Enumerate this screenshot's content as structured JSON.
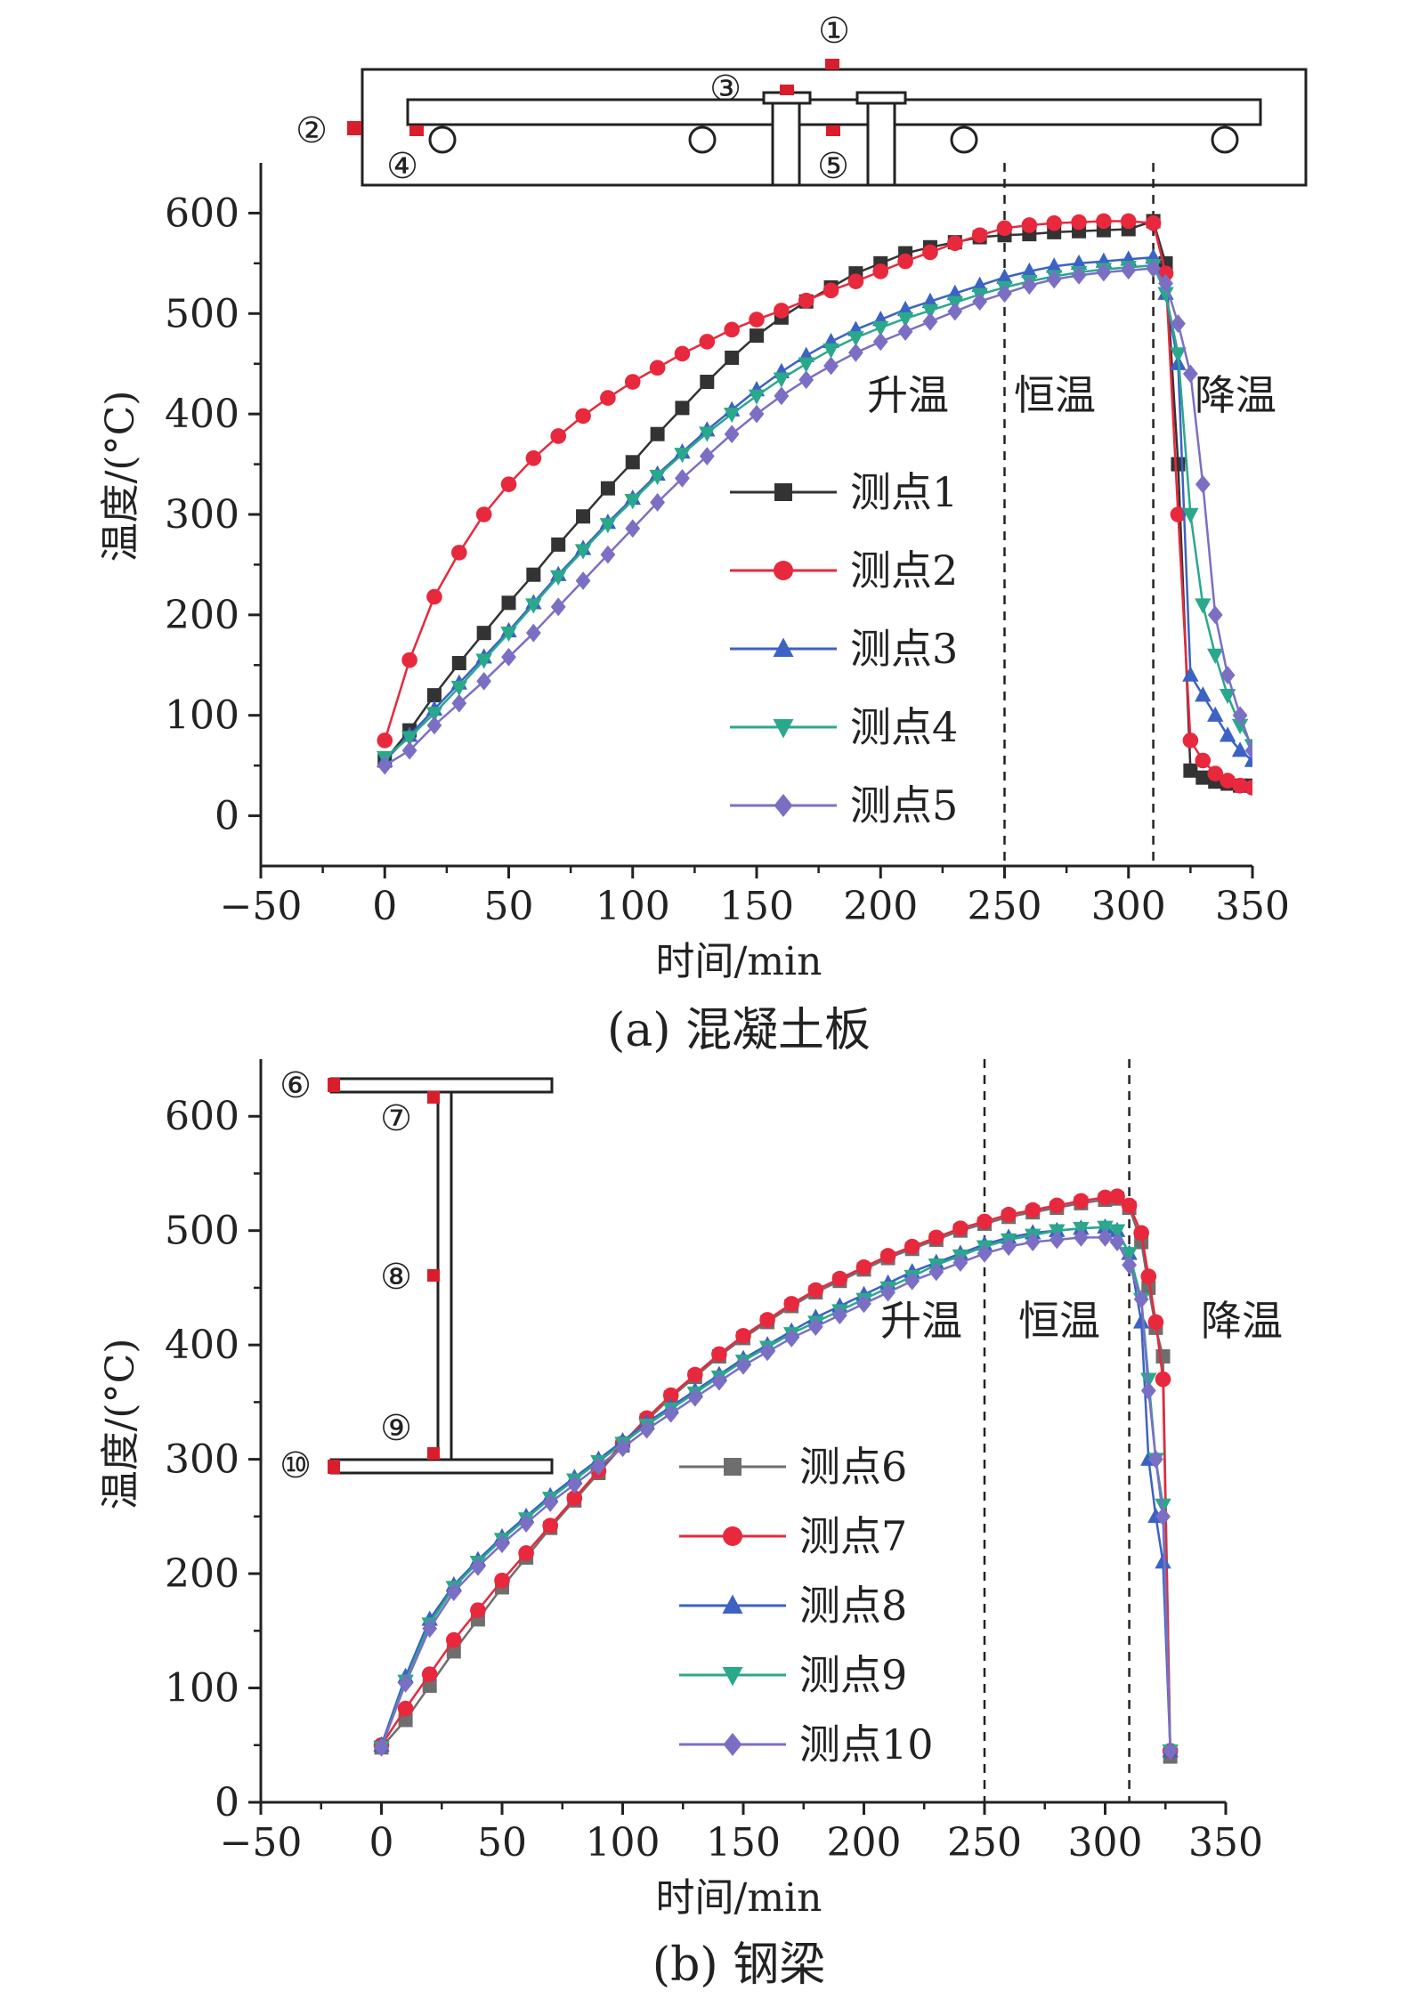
{
  "chart_data": [
    {
      "type": "line",
      "caption": "(a) 混凝土板",
      "xlabel": "时间/min",
      "ylabel": "温度/(°C)",
      "xlim": [
        -50,
        350
      ],
      "ylim": [
        -50,
        650
      ],
      "xticks": [
        -50,
        0,
        50,
        100,
        150,
        200,
        250,
        300,
        350
      ],
      "yticks": [
        0,
        100,
        200,
        300,
        400,
        500,
        600
      ],
      "phase_lines": [
        250,
        310
      ],
      "phases": [
        "升温",
        "恒温",
        "降温"
      ],
      "diagram_labels": [
        "①",
        "②",
        "③",
        "④",
        "⑤"
      ],
      "series": [
        {
          "name": "测点1",
          "color": "#333333",
          "marker": "square",
          "x": [
            0,
            10,
            20,
            30,
            40,
            50,
            60,
            70,
            80,
            90,
            100,
            110,
            120,
            130,
            140,
            150,
            160,
            170,
            180,
            190,
            200,
            210,
            220,
            230,
            240,
            250,
            260,
            270,
            280,
            290,
            300,
            310,
            315,
            320,
            325,
            330,
            335,
            340,
            345,
            350
          ],
          "y": [
            55,
            85,
            120,
            152,
            182,
            212,
            240,
            270,
            298,
            326,
            352,
            380,
            406,
            432,
            456,
            478,
            496,
            512,
            526,
            540,
            550,
            560,
            566,
            571,
            576,
            578,
            579,
            581,
            582,
            583,
            584,
            592,
            550,
            350,
            45,
            38,
            34,
            32,
            30,
            30
          ]
        },
        {
          "name": "测点2",
          "color": "#e8283c",
          "marker": "circle",
          "x": [
            0,
            10,
            20,
            30,
            40,
            50,
            60,
            70,
            80,
            90,
            100,
            110,
            120,
            130,
            140,
            150,
            160,
            170,
            180,
            190,
            200,
            210,
            220,
            230,
            240,
            250,
            260,
            270,
            280,
            290,
            300,
            310,
            315,
            320,
            325,
            330,
            335,
            340,
            345,
            350
          ],
          "y": [
            75,
            155,
            218,
            262,
            300,
            330,
            356,
            378,
            398,
            416,
            432,
            446,
            460,
            472,
            484,
            494,
            503,
            513,
            523,
            532,
            542,
            552,
            561,
            570,
            578,
            585,
            588,
            590,
            591,
            592,
            592,
            590,
            540,
            300,
            75,
            55,
            42,
            35,
            30,
            28
          ]
        },
        {
          "name": "测点3",
          "color": "#3b62c4",
          "marker": "triangle-up",
          "x": [
            0,
            10,
            20,
            30,
            40,
            50,
            60,
            70,
            80,
            90,
            100,
            110,
            120,
            130,
            140,
            150,
            160,
            170,
            180,
            190,
            200,
            210,
            220,
            230,
            240,
            250,
            260,
            270,
            280,
            290,
            300,
            310,
            315,
            320,
            325,
            330,
            335,
            340,
            345,
            350
          ],
          "y": [
            55,
            80,
            106,
            132,
            158,
            184,
            212,
            240,
            266,
            292,
            316,
            340,
            362,
            384,
            404,
            424,
            442,
            458,
            472,
            484,
            494,
            504,
            512,
            520,
            528,
            536,
            542,
            547,
            550,
            552,
            554,
            556,
            520,
            450,
            140,
            120,
            100,
            80,
            65,
            55
          ]
        },
        {
          "name": "测点4",
          "color": "#2aa88c",
          "marker": "triangle-down",
          "x": [
            0,
            10,
            20,
            30,
            40,
            50,
            60,
            70,
            80,
            90,
            100,
            110,
            120,
            130,
            140,
            150,
            160,
            170,
            180,
            190,
            200,
            210,
            220,
            230,
            240,
            250,
            260,
            270,
            280,
            290,
            300,
            310,
            315,
            320,
            325,
            330,
            335,
            340,
            345,
            350
          ],
          "y": [
            58,
            78,
            102,
            128,
            155,
            182,
            210,
            238,
            264,
            290,
            314,
            338,
            360,
            381,
            400,
            418,
            435,
            450,
            464,
            476,
            486,
            495,
            503,
            511,
            519,
            526,
            532,
            537,
            541,
            544,
            546,
            548,
            520,
            460,
            300,
            210,
            160,
            120,
            90,
            70
          ]
        },
        {
          "name": "测点5",
          "color": "#7b6fc4",
          "marker": "diamond",
          "x": [
            0,
            10,
            20,
            30,
            40,
            50,
            60,
            70,
            80,
            90,
            100,
            110,
            120,
            130,
            140,
            150,
            160,
            170,
            180,
            190,
            200,
            210,
            220,
            230,
            240,
            250,
            260,
            270,
            280,
            290,
            300,
            310,
            315,
            320,
            325,
            330,
            335,
            340,
            345,
            350
          ],
          "y": [
            50,
            65,
            90,
            112,
            134,
            158,
            182,
            208,
            234,
            260,
            286,
            312,
            336,
            358,
            380,
            400,
            418,
            434,
            448,
            461,
            472,
            482,
            492,
            502,
            512,
            520,
            528,
            534,
            538,
            541,
            543,
            545,
            530,
            490,
            440,
            330,
            200,
            140,
            100,
            65
          ]
        }
      ]
    },
    {
      "type": "line",
      "caption": "(b) 钢梁",
      "xlabel": "时间/min",
      "ylabel": "温度/(°C)",
      "xlim": [
        -50,
        350
      ],
      "ylim": [
        0,
        650
      ],
      "xticks": [
        -50,
        0,
        50,
        100,
        150,
        200,
        250,
        300,
        350
      ],
      "yticks": [
        0,
        100,
        200,
        300,
        400,
        500,
        600
      ],
      "phase_lines": [
        250,
        310
      ],
      "phases": [
        "升温",
        "恒温",
        "降温"
      ],
      "diagram_labels": [
        "⑥",
        "⑦",
        "⑧",
        "⑨",
        "⑩"
      ],
      "series": [
        {
          "name": "测点6",
          "color": "#6e6e6e",
          "marker": "square",
          "x": [
            0,
            10,
            20,
            30,
            40,
            50,
            60,
            70,
            80,
            90,
            100,
            110,
            120,
            130,
            140,
            150,
            160,
            170,
            180,
            190,
            200,
            210,
            220,
            230,
            240,
            250,
            260,
            270,
            280,
            290,
            300,
            305,
            310,
            315,
            318,
            321,
            324,
            327
          ],
          "y": [
            48,
            72,
            102,
            132,
            160,
            188,
            214,
            240,
            264,
            288,
            312,
            334,
            354,
            372,
            390,
            406,
            420,
            434,
            446,
            456,
            466,
            476,
            484,
            492,
            500,
            506,
            512,
            516,
            520,
            524,
            527,
            528,
            520,
            490,
            450,
            415,
            390,
            40
          ]
        },
        {
          "name": "测点7",
          "color": "#e8283c",
          "marker": "circle",
          "x": [
            0,
            10,
            20,
            30,
            40,
            50,
            60,
            70,
            80,
            90,
            100,
            110,
            120,
            130,
            140,
            150,
            160,
            170,
            180,
            190,
            200,
            210,
            220,
            230,
            240,
            250,
            260,
            270,
            280,
            290,
            300,
            305,
            310,
            315,
            318,
            321,
            324,
            327
          ],
          "y": [
            50,
            82,
            112,
            142,
            168,
            194,
            218,
            242,
            266,
            290,
            314,
            336,
            356,
            374,
            392,
            408,
            422,
            436,
            448,
            458,
            468,
            478,
            486,
            494,
            502,
            508,
            514,
            518,
            522,
            526,
            529,
            530,
            522,
            498,
            460,
            420,
            370,
            45
          ]
        },
        {
          "name": "测点8",
          "color": "#3b62c4",
          "marker": "triangle-up",
          "x": [
            0,
            10,
            20,
            30,
            40,
            50,
            60,
            70,
            80,
            90,
            100,
            110,
            120,
            130,
            140,
            150,
            160,
            170,
            180,
            190,
            200,
            210,
            220,
            230,
            240,
            250,
            260,
            270,
            280,
            290,
            300,
            305,
            310,
            315,
            318,
            321,
            324,
            327
          ],
          "y": [
            50,
            110,
            160,
            190,
            212,
            232,
            250,
            268,
            284,
            300,
            316,
            332,
            346,
            360,
            374,
            388,
            400,
            412,
            424,
            434,
            444,
            454,
            464,
            472,
            480,
            488,
            494,
            498,
            500,
            502,
            503,
            500,
            480,
            420,
            300,
            250,
            210,
            45
          ]
        },
        {
          "name": "测点9",
          "color": "#2aa88c",
          "marker": "triangle-down",
          "x": [
            0,
            10,
            20,
            30,
            40,
            50,
            60,
            70,
            80,
            90,
            100,
            110,
            120,
            130,
            140,
            150,
            160,
            170,
            180,
            190,
            200,
            210,
            220,
            230,
            240,
            250,
            260,
            270,
            280,
            290,
            300,
            305,
            310,
            315,
            318,
            321,
            324,
            327
          ],
          "y": [
            48,
            106,
            156,
            188,
            210,
            230,
            248,
            266,
            282,
            298,
            314,
            330,
            344,
            358,
            372,
            386,
            398,
            410,
            420,
            430,
            440,
            450,
            460,
            470,
            478,
            486,
            492,
            496,
            500,
            502,
            503,
            500,
            480,
            440,
            370,
            300,
            260,
            45
          ]
        },
        {
          "name": "测点10",
          "color": "#7b6fc4",
          "marker": "diamond",
          "x": [
            0,
            10,
            20,
            30,
            40,
            50,
            60,
            70,
            80,
            90,
            100,
            110,
            120,
            130,
            140,
            150,
            160,
            170,
            180,
            190,
            200,
            210,
            220,
            230,
            240,
            250,
            260,
            270,
            280,
            290,
            300,
            305,
            310,
            315,
            318,
            321,
            324,
            327
          ],
          "y": [
            48,
            104,
            152,
            184,
            206,
            226,
            244,
            262,
            278,
            294,
            310,
            326,
            340,
            354,
            368,
            382,
            394,
            406,
            416,
            426,
            436,
            446,
            456,
            464,
            472,
            480,
            486,
            490,
            492,
            494,
            494,
            490,
            470,
            440,
            360,
            300,
            250,
            45
          ]
        }
      ]
    }
  ]
}
